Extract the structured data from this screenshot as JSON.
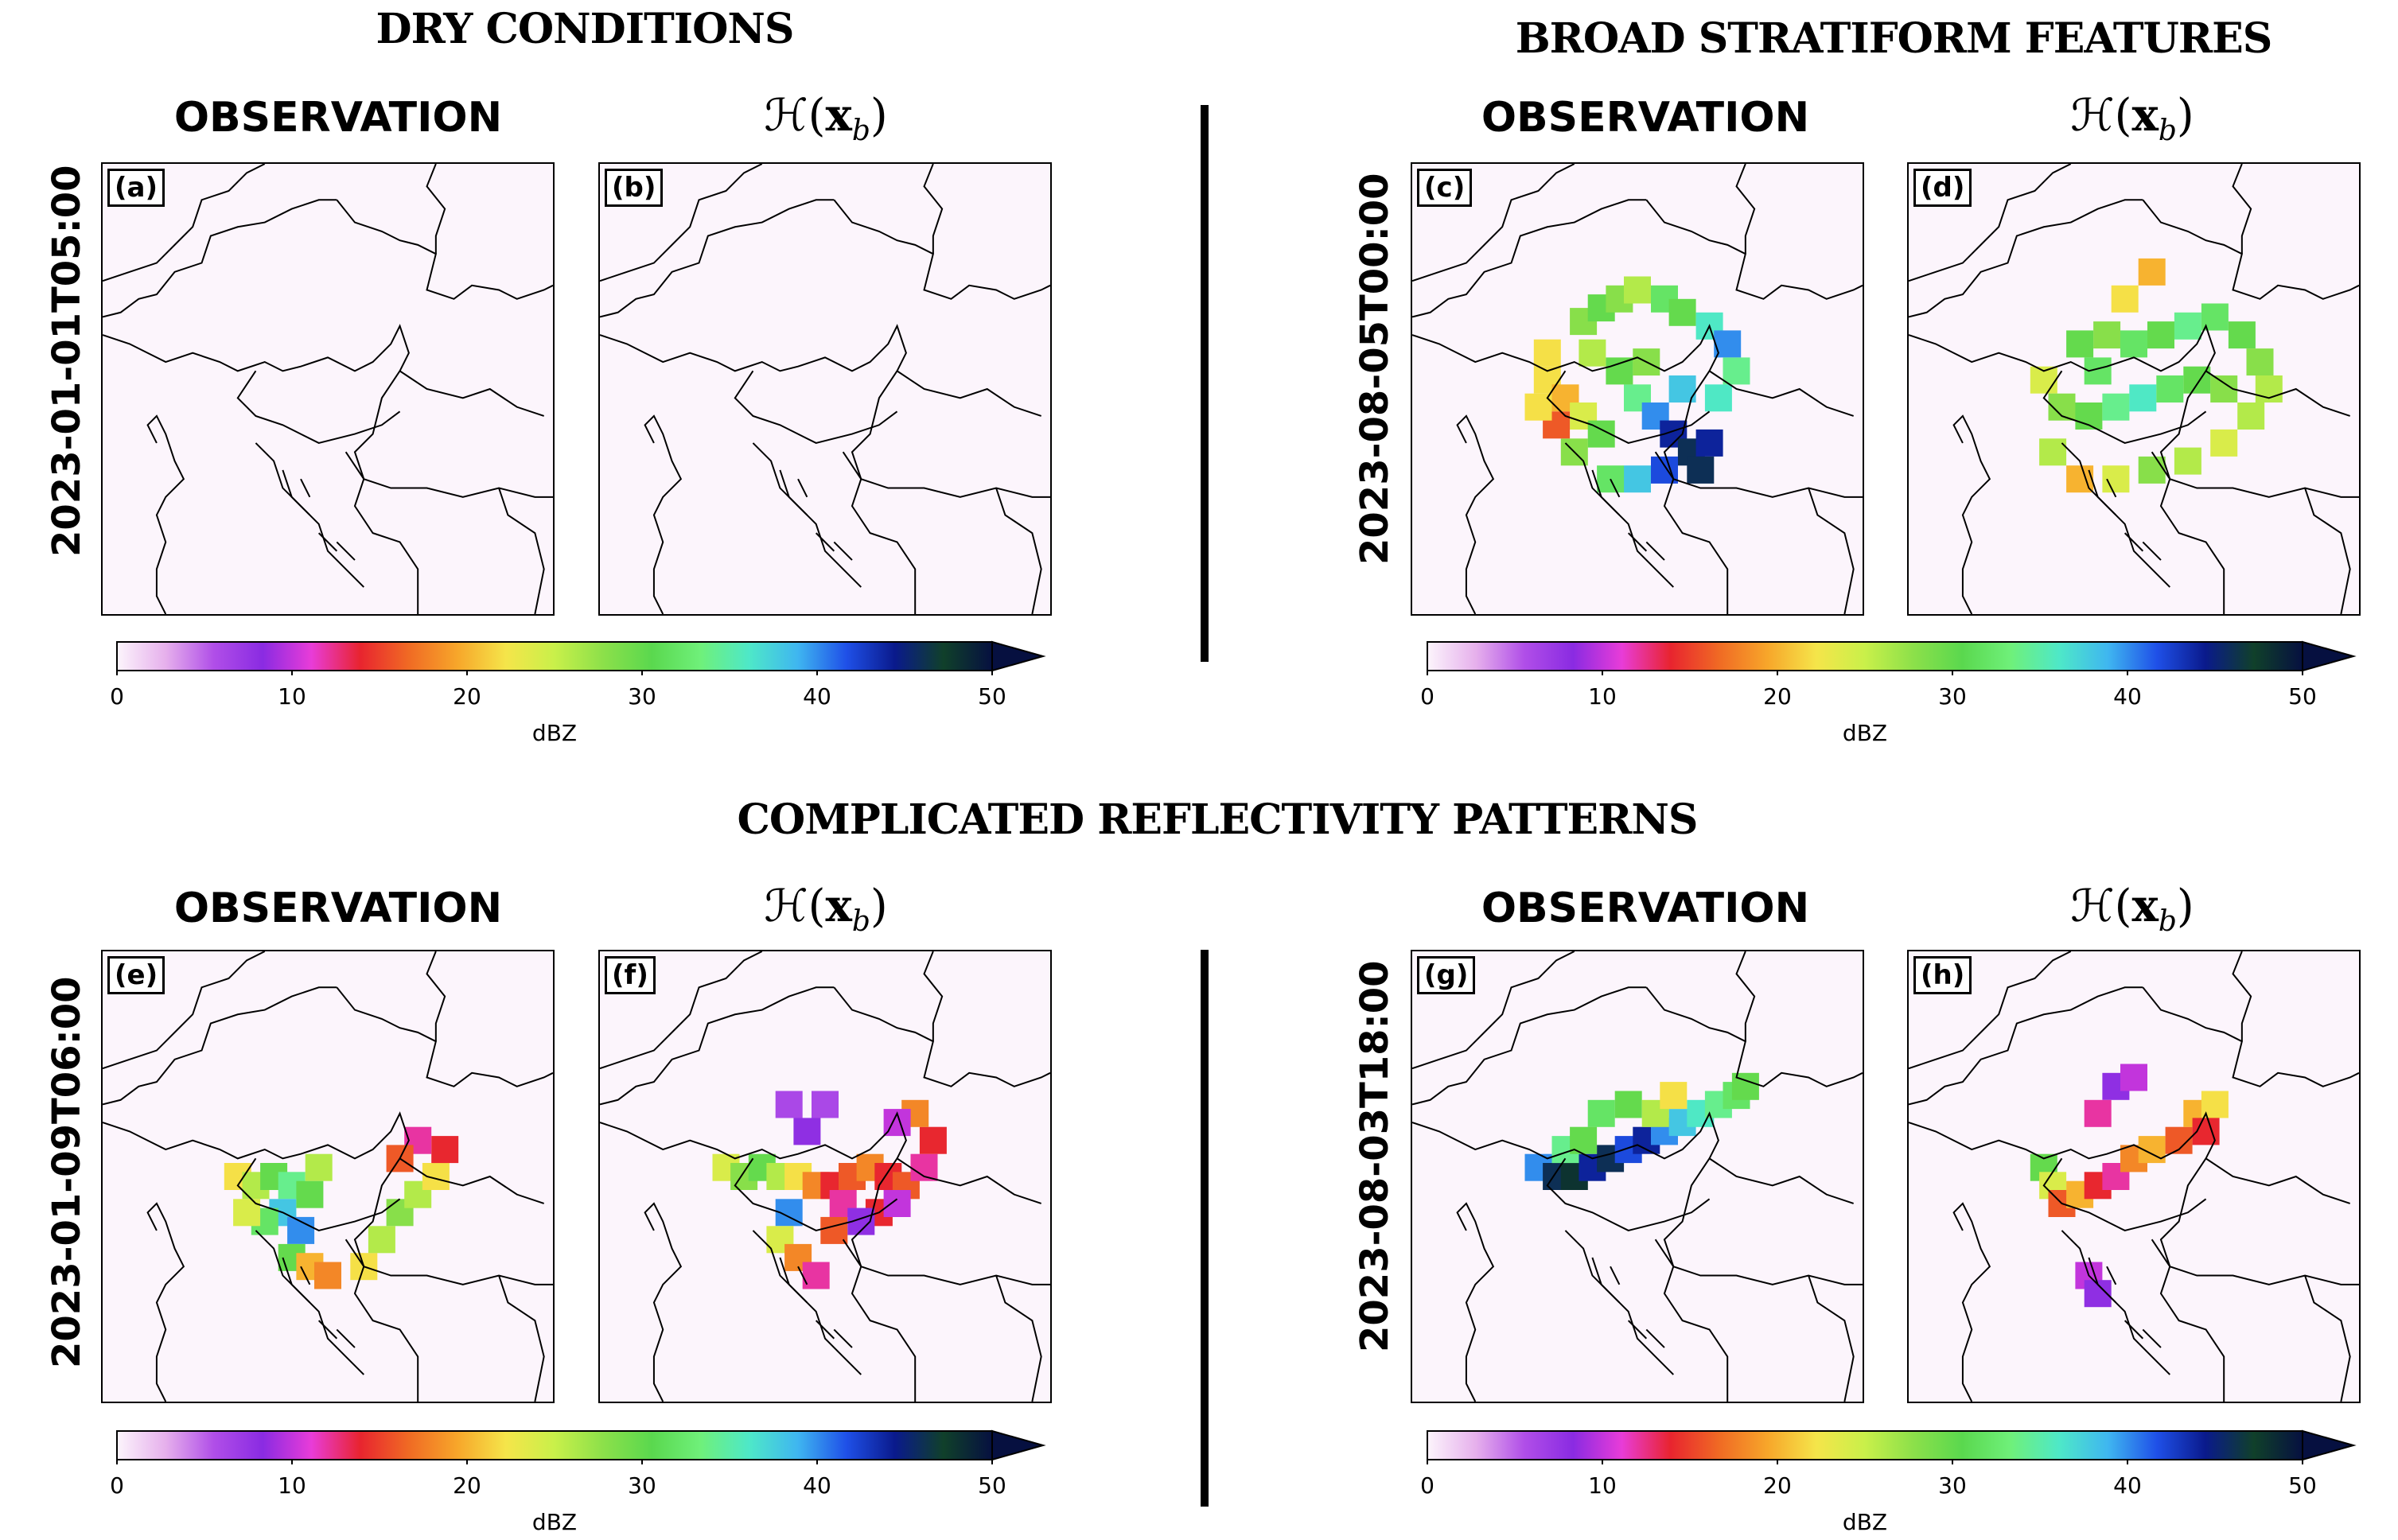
{
  "section_titles": {
    "top_left": "DRY CONDITIONS",
    "top_right": "BROAD STRATIFORM FEATURES",
    "bottom": "COMPLICATED REFLECTIVITY PATTERNS"
  },
  "column_titles": {
    "observation": "OBSERVATION",
    "operator_H": "ℋ",
    "operator_x": "x",
    "operator_sub": "b"
  },
  "row_labels": {
    "a": "2023-01-01T05:00",
    "c": "2023-08-05T00:00",
    "e": "2023-01-09T06:00",
    "g": "2023-08-03T18:00"
  },
  "panel_letters": [
    "(a)",
    "(b)",
    "(c)",
    "(d)",
    "(e)",
    "(f)",
    "(g)",
    "(h)"
  ],
  "colorbar": {
    "label": "dBZ",
    "ticks": [
      "0",
      "10",
      "20",
      "30",
      "40",
      "50"
    ],
    "range": [
      0,
      50
    ],
    "extend": "max",
    "colors": [
      "#fcf5fc",
      "#e6b0ec",
      "#b04ee8",
      "#8a2be2",
      "#e83cd8",
      "#e8242f",
      "#f06a24",
      "#f7a62a",
      "#f5e54a",
      "#c9f04a",
      "#8ce04a",
      "#5ad84e",
      "#6ff07a",
      "#4ee8c8",
      "#3fb6f0",
      "#1f50e8",
      "#0a1a8c",
      "#10402a",
      "#061040"
    ]
  },
  "chart_data": [
    {
      "panel": "a",
      "type": "heatmap",
      "title": "OBSERVATION",
      "time": "2023-01-01T05:00",
      "case": "dry",
      "cells": []
    },
    {
      "panel": "b",
      "type": "heatmap",
      "title": "H(x_b)",
      "time": "2023-01-01T05:00",
      "case": "dry",
      "cells": []
    },
    {
      "panel": "c",
      "type": "heatmap",
      "title": "OBSERVATION",
      "time": "2023-08-05T00:00",
      "cells": [
        [
          0.38,
          0.35,
          28
        ],
        [
          0.42,
          0.32,
          30
        ],
        [
          0.46,
          0.3,
          28
        ],
        [
          0.5,
          0.28,
          26
        ],
        [
          0.56,
          0.3,
          32
        ],
        [
          0.6,
          0.33,
          30
        ],
        [
          0.66,
          0.36,
          36
        ],
        [
          0.7,
          0.4,
          40
        ],
        [
          0.3,
          0.48,
          22
        ],
        [
          0.34,
          0.52,
          20
        ],
        [
          0.38,
          0.56,
          24
        ],
        [
          0.42,
          0.6,
          30
        ],
        [
          0.5,
          0.52,
          34
        ],
        [
          0.54,
          0.56,
          40
        ],
        [
          0.58,
          0.6,
          44
        ],
        [
          0.62,
          0.64,
          46
        ],
        [
          0.66,
          0.62,
          44
        ],
        [
          0.64,
          0.68,
          46
        ],
        [
          0.56,
          0.68,
          42
        ],
        [
          0.5,
          0.7,
          38
        ],
        [
          0.44,
          0.7,
          32
        ],
        [
          0.36,
          0.64,
          28
        ],
        [
          0.32,
          0.58,
          16
        ],
        [
          0.28,
          0.54,
          22
        ],
        [
          0.6,
          0.5,
          38
        ],
        [
          0.68,
          0.52,
          36
        ],
        [
          0.72,
          0.46,
          34
        ],
        [
          0.46,
          0.46,
          30
        ],
        [
          0.52,
          0.44,
          28
        ],
        [
          0.4,
          0.42,
          26
        ],
        [
          0.3,
          0.42,
          22
        ]
      ]
    },
    {
      "panel": "d",
      "type": "heatmap",
      "title": "H(x_b)",
      "time": "2023-08-05T00:00",
      "cells": [
        [
          0.38,
          0.4,
          30
        ],
        [
          0.44,
          0.38,
          28
        ],
        [
          0.5,
          0.4,
          32
        ],
        [
          0.56,
          0.38,
          30
        ],
        [
          0.62,
          0.36,
          34
        ],
        [
          0.68,
          0.34,
          32
        ],
        [
          0.74,
          0.38,
          30
        ],
        [
          0.78,
          0.44,
          28
        ],
        [
          0.8,
          0.5,
          26
        ],
        [
          0.3,
          0.48,
          24
        ],
        [
          0.34,
          0.54,
          28
        ],
        [
          0.4,
          0.56,
          30
        ],
        [
          0.46,
          0.54,
          34
        ],
        [
          0.52,
          0.52,
          36
        ],
        [
          0.58,
          0.5,
          32
        ],
        [
          0.64,
          0.48,
          30
        ],
        [
          0.7,
          0.5,
          28
        ],
        [
          0.76,
          0.56,
          26
        ],
        [
          0.7,
          0.62,
          24
        ],
        [
          0.62,
          0.66,
          26
        ],
        [
          0.54,
          0.68,
          28
        ],
        [
          0.46,
          0.7,
          24
        ],
        [
          0.38,
          0.7,
          20
        ],
        [
          0.32,
          0.64,
          26
        ],
        [
          0.42,
          0.46,
          32
        ],
        [
          0.48,
          0.3,
          22
        ],
        [
          0.54,
          0.24,
          20
        ]
      ]
    },
    {
      "panel": "e",
      "type": "heatmap",
      "title": "OBSERVATION",
      "time": "2023-01-09T06:00",
      "cells": [
        [
          0.3,
          0.5,
          22
        ],
        [
          0.34,
          0.52,
          26
        ],
        [
          0.38,
          0.5,
          30
        ],
        [
          0.42,
          0.52,
          34
        ],
        [
          0.4,
          0.58,
          38
        ],
        [
          0.36,
          0.6,
          32
        ],
        [
          0.32,
          0.58,
          24
        ],
        [
          0.44,
          0.62,
          40
        ],
        [
          0.42,
          0.68,
          30
        ],
        [
          0.46,
          0.7,
          20
        ],
        [
          0.5,
          0.72,
          18
        ],
        [
          0.58,
          0.7,
          22
        ],
        [
          0.62,
          0.64,
          26
        ],
        [
          0.66,
          0.58,
          28
        ],
        [
          0.7,
          0.54,
          26
        ],
        [
          0.74,
          0.5,
          22
        ],
        [
          0.76,
          0.44,
          14
        ],
        [
          0.7,
          0.42,
          12
        ],
        [
          0.66,
          0.46,
          16
        ],
        [
          0.48,
          0.48,
          26
        ],
        [
          0.46,
          0.54,
          30
        ]
      ]
    },
    {
      "panel": "f",
      "type": "heatmap",
      "title": "H(x_b)",
      "time": "2023-01-09T06:00",
      "cells": [
        [
          0.28,
          0.48,
          24
        ],
        [
          0.32,
          0.5,
          28
        ],
        [
          0.36,
          0.48,
          30
        ],
        [
          0.4,
          0.5,
          26
        ],
        [
          0.44,
          0.5,
          22
        ],
        [
          0.48,
          0.52,
          18
        ],
        [
          0.52,
          0.52,
          14
        ],
        [
          0.56,
          0.5,
          16
        ],
        [
          0.6,
          0.48,
          18
        ],
        [
          0.64,
          0.5,
          14
        ],
        [
          0.68,
          0.52,
          16
        ],
        [
          0.72,
          0.48,
          12
        ],
        [
          0.74,
          0.42,
          14
        ],
        [
          0.7,
          0.36,
          18
        ],
        [
          0.66,
          0.38,
          10
        ],
        [
          0.42,
          0.58,
          40
        ],
        [
          0.4,
          0.64,
          24
        ],
        [
          0.44,
          0.68,
          18
        ],
        [
          0.48,
          0.72,
          12
        ],
        [
          0.52,
          0.62,
          16
        ],
        [
          0.54,
          0.56,
          12
        ],
        [
          0.62,
          0.58,
          14
        ],
        [
          0.66,
          0.56,
          10
        ],
        [
          0.46,
          0.4,
          8
        ],
        [
          0.42,
          0.34,
          6
        ],
        [
          0.5,
          0.34,
          6
        ],
        [
          0.58,
          0.6,
          8
        ]
      ]
    },
    {
      "panel": "g",
      "type": "heatmap",
      "title": "OBSERVATION",
      "time": "2023-08-03T18:00",
      "cells": [
        [
          0.28,
          0.48,
          40
        ],
        [
          0.32,
          0.5,
          46
        ],
        [
          0.36,
          0.5,
          48
        ],
        [
          0.4,
          0.48,
          44
        ],
        [
          0.44,
          0.46,
          46
        ],
        [
          0.48,
          0.44,
          42
        ],
        [
          0.52,
          0.42,
          44
        ],
        [
          0.56,
          0.4,
          40
        ],
        [
          0.6,
          0.38,
          38
        ],
        [
          0.64,
          0.36,
          36
        ],
        [
          0.68,
          0.34,
          34
        ],
        [
          0.72,
          0.32,
          32
        ],
        [
          0.74,
          0.3,
          30
        ],
        [
          0.42,
          0.36,
          32
        ],
        [
          0.48,
          0.34,
          30
        ],
        [
          0.54,
          0.36,
          26
        ],
        [
          0.58,
          0.32,
          22
        ],
        [
          0.34,
          0.44,
          34
        ],
        [
          0.38,
          0.42,
          30
        ]
      ]
    },
    {
      "panel": "h",
      "type": "heatmap",
      "title": "H(x_b)",
      "time": "2023-08-03T18:00",
      "cells": [
        [
          0.3,
          0.48,
          30
        ],
        [
          0.32,
          0.52,
          24
        ],
        [
          0.34,
          0.56,
          16
        ],
        [
          0.38,
          0.54,
          20
        ],
        [
          0.42,
          0.52,
          14
        ],
        [
          0.46,
          0.5,
          12
        ],
        [
          0.5,
          0.46,
          18
        ],
        [
          0.54,
          0.44,
          20
        ],
        [
          0.6,
          0.42,
          16
        ],
        [
          0.64,
          0.36,
          20
        ],
        [
          0.68,
          0.34,
          22
        ],
        [
          0.66,
          0.4,
          14
        ],
        [
          0.46,
          0.3,
          8
        ],
        [
          0.5,
          0.28,
          10
        ],
        [
          0.42,
          0.36,
          12
        ],
        [
          0.4,
          0.72,
          10
        ],
        [
          0.42,
          0.76,
          8
        ]
      ]
    }
  ]
}
